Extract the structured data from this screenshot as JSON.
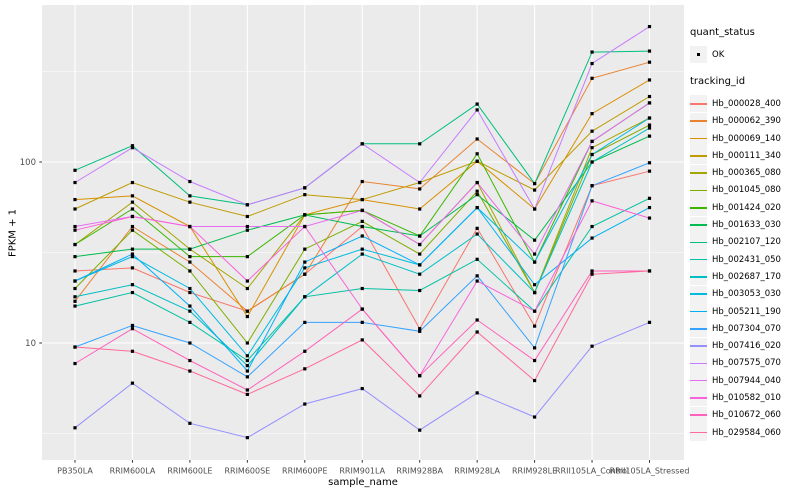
{
  "window": {
    "bg": "#FFFFFF"
  },
  "chart": {
    "panel_bg": "#EBEBEB",
    "grid_color": "#FFFFFF",
    "marker_color": "#000000",
    "tick_color": "#333333",
    "tick_label_color": "#4D4D4D",
    "key_bg": "#F2F2F2"
  },
  "y_axis": {
    "title": "FPKM + 1",
    "tick_labels": [
      "100",
      "10"
    ],
    "tick_values": [
      100,
      10
    ],
    "minor_values": [
      316.23,
      31.62,
      3.162
    ]
  },
  "x_axis": {
    "title": "sample_name"
  },
  "legend": {
    "quant_status": {
      "title": "quant_status",
      "item": "OK"
    },
    "tracking_id": {
      "title": "tracking_id"
    }
  },
  "chart_data": {
    "type": "line",
    "title": "",
    "xlabel": "sample_name",
    "ylabel": "FPKM + 1",
    "yscale": "log10",
    "ylim": [
      2.3,
      740
    ],
    "grid": true,
    "legend_position": "right",
    "point_marker": "black-square",
    "x": [
      "PB350LA",
      "RRIM600LA",
      "RRIM600LE",
      "RRIM600SE",
      "RRIM600PE",
      "RRIM901LA",
      "RRIM928BA",
      "RRIM928LA",
      "RRIM928LE",
      "RRII105LA_Control",
      "RRII105LA_Stressed"
    ],
    "series": [
      {
        "name": "Hb_000028_400",
        "color": "#F8766D",
        "values": [
          25,
          26,
          19,
          15,
          24,
          44,
          12,
          43,
          12.4,
          74,
          89
        ]
      },
      {
        "name": "Hb_000062_390",
        "color": "#EA8331",
        "values": [
          17,
          44,
          28,
          15,
          24,
          78,
          71,
          134,
          76,
          290,
          356
        ]
      },
      {
        "name": "Hb_000069_140",
        "color": "#D89000",
        "values": [
          62,
          65,
          44,
          14,
          51,
          62,
          55,
          101,
          55,
          185,
          284
        ]
      },
      {
        "name": "Hb_000111_340",
        "color": "#C09B00",
        "values": [
          55,
          77,
          60,
          50,
          66,
          62,
          77,
          101,
          70,
          148,
          230
        ]
      },
      {
        "name": "Hb_000365_080",
        "color": "#A3A500",
        "values": [
          35,
          60,
          33,
          20,
          51,
          54,
          35,
          77,
          19,
          120,
          175
        ]
      },
      {
        "name": "Hb_001045_080",
        "color": "#7CAE00",
        "values": [
          20,
          42,
          25,
          10,
          33,
          47,
          31,
          69,
          19,
          110,
          160
        ]
      },
      {
        "name": "Hb_001424_020",
        "color": "#39B600",
        "values": [
          35,
          55,
          30,
          30,
          51,
          54,
          39,
          111,
          28,
          130,
          212
        ]
      },
      {
        "name": "Hb_001633_030",
        "color": "#00BB4E",
        "values": [
          30,
          33,
          33,
          42,
          51,
          44,
          39,
          66,
          37,
          100,
          139
        ]
      },
      {
        "name": "Hb_002107_120",
        "color": "#00BF7D",
        "values": [
          90,
          123,
          65,
          58,
          72,
          126,
          126,
          209,
          76,
          405,
          410
        ]
      },
      {
        "name": "Hb_002431_050",
        "color": "#00C1A3",
        "values": [
          16,
          19,
          13,
          8,
          18,
          20,
          19.5,
          29,
          15,
          44,
          63
        ]
      },
      {
        "name": "Hb_002687_170",
        "color": "#00BFC4",
        "values": [
          18,
          21,
          15,
          7.5,
          18,
          31,
          24,
          40,
          19,
          100,
          154
        ]
      },
      {
        "name": "Hb_003053_030",
        "color": "#00BAE0",
        "values": [
          22,
          30,
          20,
          8.5,
          26,
          33,
          27,
          56,
          28,
          110,
          175
        ]
      },
      {
        "name": "Hb_005211_190",
        "color": "#00B0F6",
        "values": [
          22,
          31,
          16,
          7,
          28,
          39,
          27,
          56,
          21,
          38,
          56
        ]
      },
      {
        "name": "Hb_007304_070",
        "color": "#35A2FF",
        "values": [
          9.5,
          12.5,
          10,
          6.5,
          13,
          13,
          11.6,
          23.5,
          9.4,
          74,
          99
        ]
      },
      {
        "name": "Hb_007416_020",
        "color": "#9590FF",
        "values": [
          3.4,
          6,
          3.6,
          3,
          4.6,
          5.6,
          3.3,
          5.3,
          3.9,
          9.6,
          13
        ]
      },
      {
        "name": "Hb_007575_070",
        "color": "#C77CFF",
        "values": [
          77,
          120,
          78,
          58,
          72,
          126,
          77,
          194,
          55,
          350,
          560
        ]
      },
      {
        "name": "Hb_007944_040",
        "color": "#E76BF3",
        "values": [
          44,
          50,
          44,
          44,
          44,
          54,
          35,
          77,
          31,
          130,
          212
        ]
      },
      {
        "name": "Hb_010582_010",
        "color": "#FA62DB",
        "values": [
          42,
          50,
          44,
          22,
          44,
          15.4,
          6.6,
          22,
          15,
          61,
          49
        ]
      },
      {
        "name": "Hb_010672_060",
        "color": "#FF62BC",
        "values": [
          7.7,
          12,
          8,
          5.5,
          9,
          15.4,
          6.6,
          13.4,
          8,
          25,
          25
        ]
      },
      {
        "name": "Hb_029584_060",
        "color": "#FF6A98",
        "values": [
          9.5,
          9,
          7,
          5.2,
          7.2,
          10.4,
          5.1,
          11.5,
          6.2,
          24,
          25
        ]
      }
    ]
  }
}
